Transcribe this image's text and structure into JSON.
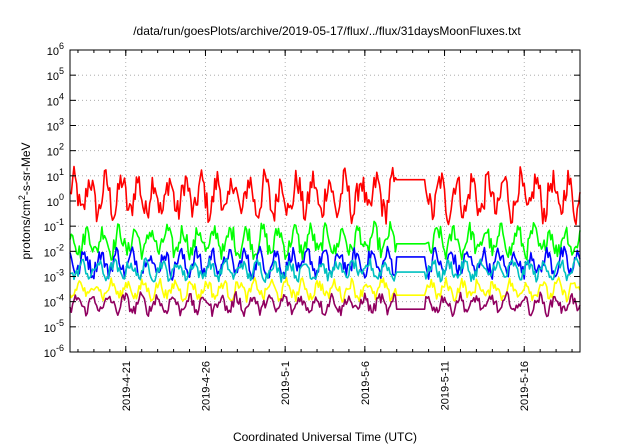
{
  "chart_data": {
    "type": "line",
    "title": "/data/run/goesPlots/archive/2019-05-17/flux/../flux/31daysMoonFluxes.txt",
    "xlabel": "Coordinated Universal Time (UTC)",
    "ylabel_base": "protons/cm",
    "ylabel_sup": "2",
    "ylabel_rest": "-s-sr-MeV",
    "y_scale": "log",
    "ylim": [
      1e-06,
      1000000.0
    ],
    "xlim": [
      "2019-04-17T12:00",
      "2019-05-19T12:00"
    ],
    "grid": true,
    "y_ticks": [
      {
        "base": "10",
        "exp": "-6",
        "value": 1e-06
      },
      {
        "base": "10",
        "exp": "-5",
        "value": 1e-05
      },
      {
        "base": "10",
        "exp": "-4",
        "value": 0.0001
      },
      {
        "base": "10",
        "exp": "-3",
        "value": 0.001
      },
      {
        "base": "10",
        "exp": "-2",
        "value": 0.01
      },
      {
        "base": "10",
        "exp": "-1",
        "value": 0.1
      },
      {
        "base": "10",
        "exp": "0",
        "value": 1
      },
      {
        "base": "10",
        "exp": "1",
        "value": 10
      },
      {
        "base": "10",
        "exp": "2",
        "value": 100
      },
      {
        "base": "10",
        "exp": "3",
        "value": 1000
      },
      {
        "base": "10",
        "exp": "4",
        "value": 10000
      },
      {
        "base": "10",
        "exp": "5",
        "value": 100000
      },
      {
        "base": "10",
        "exp": "6",
        "value": 1000000
      }
    ],
    "x_ticks": [
      {
        "label": "2019-4-21",
        "date": "2019-04-21"
      },
      {
        "label": "2019-4-26",
        "date": "2019-04-26"
      },
      {
        "label": "2019-5-1",
        "date": "2019-05-01"
      },
      {
        "label": "2019-5-6",
        "date": "2019-05-06"
      },
      {
        "label": "2019-5-11",
        "date": "2019-05-11"
      },
      {
        "label": "2019-5-16",
        "date": "2019-05-16"
      }
    ],
    "series": [
      {
        "color": "#ff0000",
        "median": 1.5,
        "spread_decades": 1.2,
        "period_days": 1,
        "data_gap": [
          "2019-05-08T00:00",
          "2019-05-09T18:00"
        ],
        "gap_level": 7
      },
      {
        "color": "#00ff00",
        "median": 0.025,
        "spread_decades": 0.8,
        "period_days": 1,
        "data_gap": [
          "2019-05-08T00:00",
          "2019-05-09T18:00"
        ],
        "gap_level": 0.02
      },
      {
        "color": "#0000ff",
        "median": 0.0035,
        "spread_decades": 0.7,
        "period_days": 1,
        "data_gap": [
          "2019-05-08T00:00",
          "2019-05-09T18:00"
        ],
        "gap_level": 0.006
      },
      {
        "color": "#00c0c0",
        "median": 0.0018,
        "spread_decades": 0.5,
        "period_days": 1,
        "data_gap": [
          "2019-05-08T00:00",
          "2019-05-09T18:00"
        ],
        "gap_level": 0.0015
      },
      {
        "color": "#ffff00",
        "median": 0.0003,
        "spread_decades": 0.5,
        "period_days": 1,
        "data_gap": [
          "2019-05-08T00:00",
          "2019-05-09T18:00"
        ],
        "gap_level": 0.00018
      },
      {
        "color": "#900060",
        "median": 8e-05,
        "spread_decades": 0.5,
        "period_days": 1,
        "data_gap": [
          "2019-05-08T00:00",
          "2019-05-09T18:00"
        ],
        "gap_level": 5e-05
      }
    ]
  }
}
